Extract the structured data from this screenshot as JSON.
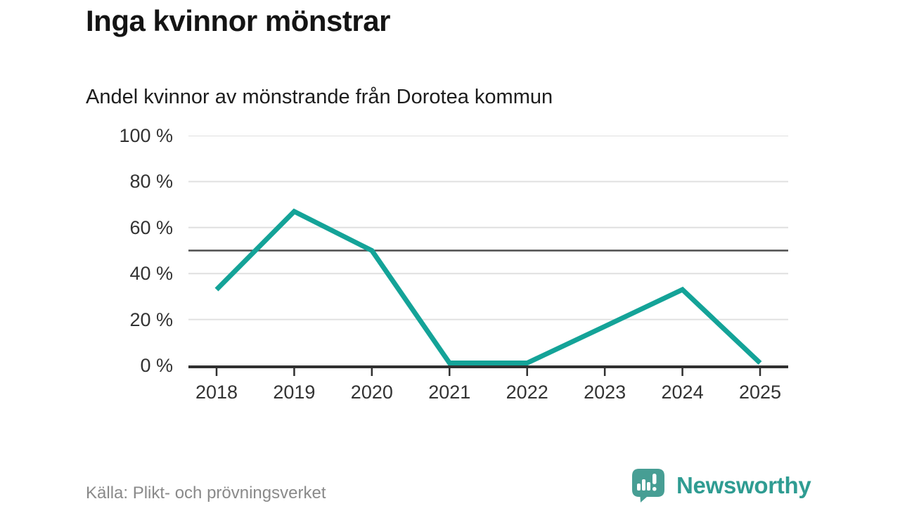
{
  "header": {
    "title": "Inga kvinnor mönstrar",
    "subtitle": "Andel kvinnor av mönstrande från Dorotea kommun"
  },
  "chart_data": {
    "type": "line",
    "title": "Inga kvinnor mönstrar",
    "subtitle": "Andel kvinnor av mönstrande från Dorotea kommun",
    "categories": [
      "2018",
      "2019",
      "2020",
      "2021",
      "2022",
      "2023",
      "2024",
      "2025"
    ],
    "values": [
      33,
      67,
      50,
      0,
      0,
      17,
      33,
      0
    ],
    "unit": "%",
    "ylim": [
      0,
      100
    ],
    "yticks": [
      100,
      80,
      60,
      40,
      20,
      0
    ],
    "ytick_labels": [
      "100 %",
      "80 %",
      "60 %",
      "40 %",
      "20 %",
      "0 %"
    ],
    "reference_line": 50,
    "grid": "horizontal",
    "legend": "none",
    "colors": {
      "line": "#14A398",
      "gridline": "#e0e0e0",
      "reference_line": "#4d4d4d",
      "axis": "#303030",
      "tick_text": "#333333"
    }
  },
  "footer": {
    "source": "Källa: Plikt- och prövningsverket",
    "brand_name": "Newsworthy",
    "brand_text_color": "#2F9C92",
    "brand_icon": "bar-chart-speech-bubble-icon",
    "brand_icon_color": "#479E94"
  }
}
